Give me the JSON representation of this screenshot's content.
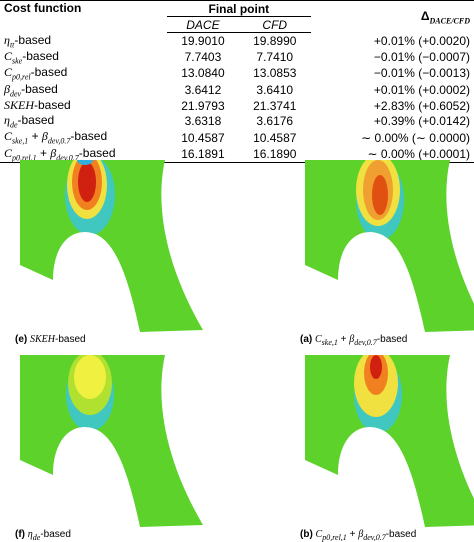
{
  "table": {
    "header": {
      "cost_function": "Cost function",
      "final_point": "Final point",
      "dace": "DACE",
      "cfd": "CFD",
      "delta": [
        {
          "t": "Δ"
        },
        {
          "sub": "DACE/CFD"
        }
      ]
    },
    "rows": [
      [
        [
          {
            "i": "η"
          },
          {
            "sub": "tt"
          },
          {
            "t": "-based"
          }
        ],
        "19.9010",
        "19.8990",
        "+0.01% (+0.0020)"
      ],
      [
        [
          {
            "i": "C"
          },
          {
            "sub": "ske"
          },
          {
            "t": "-based"
          }
        ],
        "7.7403",
        "7.7410",
        "−0.01% (−0.0007)"
      ],
      [
        [
          {
            "i": "C"
          },
          {
            "sub": "p0,rel"
          },
          {
            "t": "-based"
          }
        ],
        "13.0840",
        "13.0853",
        "−0.01% (−0.0013)"
      ],
      [
        [
          {
            "i": "β"
          },
          {
            "sub": "dev"
          },
          {
            "t": "-based"
          }
        ],
        "3.6412",
        "3.6410",
        "+0.01% (+0.0002)"
      ],
      [
        [
          {
            "i": "SKEH"
          },
          {
            "t": "-based"
          }
        ],
        "21.9793",
        "21.3741",
        "+2.83% (+0.6052)"
      ],
      [
        [
          {
            "i": "η"
          },
          {
            "sub": "de"
          },
          {
            "t": "-based"
          }
        ],
        "3.6318",
        "3.6176",
        "+0.39% (+0.0142)"
      ],
      [
        [
          {
            "i": "C"
          },
          {
            "sub": "ske,1"
          },
          {
            "t": " + "
          },
          {
            "i": "β"
          },
          {
            "sub": "dev,0.7"
          },
          {
            "t": "-based"
          }
        ],
        "10.4587",
        "10.4587",
        "∼ 0.00% (∼ 0.0000)"
      ],
      [
        [
          {
            "i": "C"
          },
          {
            "sub": "p0,rel,1"
          },
          {
            "t": " + "
          },
          {
            "i": "β"
          },
          {
            "sub": "dev,0.7"
          },
          {
            "t": "-based"
          }
        ],
        "16.1891",
        "16.1890",
        "∼ 0.00% (+0.0001)"
      ]
    ]
  },
  "figures": [
    {
      "caption": [
        {
          "t": "(e) "
        },
        {
          "i": "SKEH"
        },
        {
          "t": "-based"
        }
      ]
    },
    {
      "caption": [
        {
          "t": "(a) "
        },
        {
          "i": "C"
        },
        {
          "sub": "ske,1"
        },
        {
          "t": " + "
        },
        {
          "i": "β"
        },
        {
          "sub": "dev,0.7"
        },
        {
          "t": "-based"
        }
      ]
    },
    {
      "caption": [
        {
          "t": "(f) "
        },
        {
          "i": "η"
        },
        {
          "sub": "de"
        },
        {
          "t": "-based"
        }
      ]
    },
    {
      "caption": [
        {
          "t": "(b) "
        },
        {
          "i": "C"
        },
        {
          "sub": "p0,rel,1"
        },
        {
          "t": " + "
        },
        {
          "i": "β"
        },
        {
          "sub": "dev,0.7"
        },
        {
          "t": "-based"
        }
      ]
    }
  ]
}
